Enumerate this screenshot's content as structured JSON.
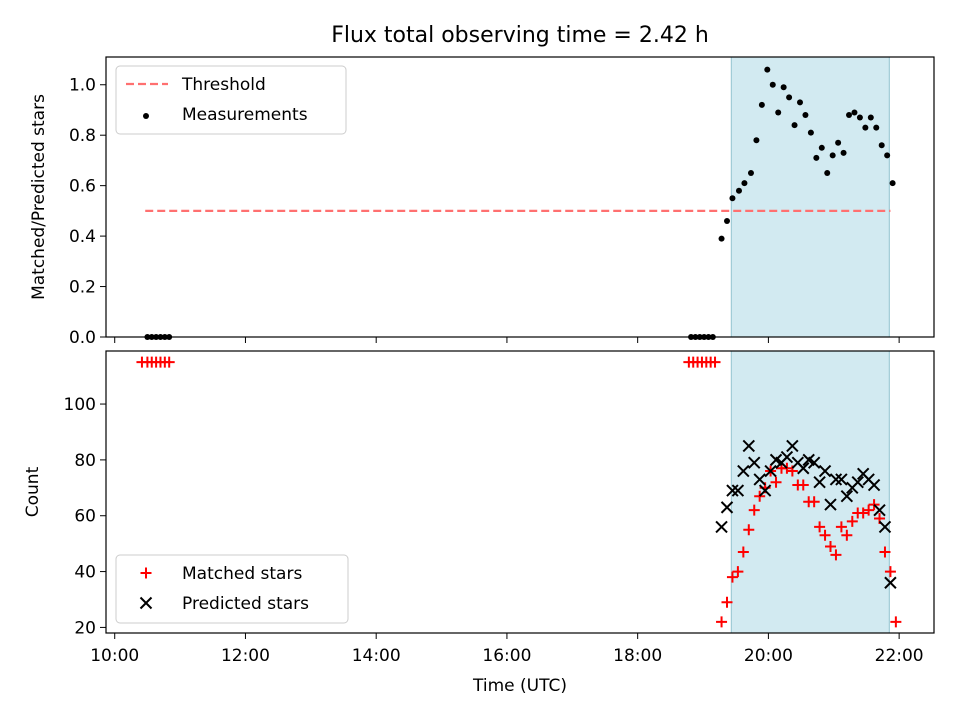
{
  "title": "Flux total observing time = 2.42 h",
  "chart_data": [
    {
      "type": "scatter",
      "ylabel": "Matched/Predicted stars",
      "ylim": [
        0,
        1.11
      ],
      "xlim": [
        "09:52",
        "22:32"
      ],
      "xticks": [],
      "yticks": [
        "0.0",
        "0.2",
        "0.4",
        "0.6",
        "0.8",
        "1.0"
      ],
      "shaded_interval": [
        "19:26",
        "21:51"
      ],
      "shade_color": "#add8e6",
      "legend_position": "upper left",
      "legend": [
        {
          "label": "Threshold",
          "marker": "dashed-line",
          "color": "#ff7070"
        },
        {
          "label": "Measurements",
          "marker": "dot",
          "color": "#000000"
        }
      ],
      "threshold": {
        "y": 0.5,
        "x_range": [
          "10:28",
          "21:52"
        ]
      },
      "measurements": [
        [
          "10:30",
          0
        ],
        [
          "10:34",
          0
        ],
        [
          "10:38",
          0
        ],
        [
          "10:42",
          0
        ],
        [
          "10:46",
          0
        ],
        [
          "10:50",
          0
        ],
        [
          "18:49",
          0
        ],
        [
          "18:53",
          0
        ],
        [
          "18:57",
          0
        ],
        [
          "19:01",
          0
        ],
        [
          "19:05",
          0
        ],
        [
          "19:09",
          0
        ],
        [
          "19:17",
          0.39
        ],
        [
          "19:22",
          0.46
        ],
        [
          "19:27",
          0.55
        ],
        [
          "19:33",
          0.58
        ],
        [
          "19:38",
          0.61
        ],
        [
          "19:44",
          0.65
        ],
        [
          "19:49",
          0.78
        ],
        [
          "19:54",
          0.92
        ],
        [
          "19:59",
          1.06
        ],
        [
          "20:04",
          1.0
        ],
        [
          "20:09",
          0.89
        ],
        [
          "20:14",
          0.99
        ],
        [
          "20:19",
          0.95
        ],
        [
          "20:24",
          0.84
        ],
        [
          "20:29",
          0.93
        ],
        [
          "20:34",
          0.88
        ],
        [
          "20:39",
          0.81
        ],
        [
          "20:44",
          0.71
        ],
        [
          "20:49",
          0.75
        ],
        [
          "20:54",
          0.65
        ],
        [
          "20:59",
          0.72
        ],
        [
          "21:04",
          0.77
        ],
        [
          "21:09",
          0.73
        ],
        [
          "21:14",
          0.88
        ],
        [
          "21:19",
          0.89
        ],
        [
          "21:24",
          0.87
        ],
        [
          "21:29",
          0.83
        ],
        [
          "21:34",
          0.87
        ],
        [
          "21:39",
          0.83
        ],
        [
          "21:44",
          0.76
        ],
        [
          "21:49",
          0.72
        ],
        [
          "21:54",
          0.61
        ]
      ]
    },
    {
      "type": "scatter",
      "ylabel": "Count",
      "xlabel": "Time (UTC)",
      "ylim": [
        18,
        119
      ],
      "xlim": [
        "09:52",
        "22:32"
      ],
      "xticks": [
        "10:00",
        "12:00",
        "14:00",
        "16:00",
        "18:00",
        "20:00",
        "22:00"
      ],
      "yticks": [
        "20",
        "40",
        "60",
        "80",
        "100"
      ],
      "shaded_interval": [
        "19:26",
        "21:51"
      ],
      "shade_color": "#add8e6",
      "legend_position": "lower left",
      "legend": [
        {
          "label": "Matched stars",
          "marker": "plus",
          "color": "#ff0000"
        },
        {
          "label": "Predicted stars",
          "marker": "x",
          "color": "#000000"
        }
      ],
      "series": [
        {
          "name": "Matched stars",
          "marker": "plus",
          "color": "#ff0000",
          "points": [
            [
              "10:25",
              115
            ],
            [
              "10:30",
              115
            ],
            [
              "10:34",
              115
            ],
            [
              "10:38",
              115
            ],
            [
              "10:42",
              115
            ],
            [
              "10:46",
              115
            ],
            [
              "10:50",
              115
            ],
            [
              "18:47",
              115
            ],
            [
              "18:51",
              115
            ],
            [
              "18:55",
              115
            ],
            [
              "18:59",
              115
            ],
            [
              "19:03",
              115
            ],
            [
              "19:07",
              115
            ],
            [
              "19:11",
              115
            ],
            [
              "19:17",
              22
            ],
            [
              "19:22",
              29
            ],
            [
              "19:27",
              38
            ],
            [
              "19:32",
              40
            ],
            [
              "19:37",
              47
            ],
            [
              "19:42",
              55
            ],
            [
              "19:47",
              62
            ],
            [
              "19:52",
              67
            ],
            [
              "19:57",
              70
            ],
            [
              "20:02",
              76
            ],
            [
              "20:07",
              72
            ],
            [
              "20:12",
              77
            ],
            [
              "20:17",
              77
            ],
            [
              "20:22",
              76
            ],
            [
              "20:27",
              71
            ],
            [
              "20:32",
              71
            ],
            [
              "20:37",
              65
            ],
            [
              "20:42",
              65
            ],
            [
              "20:47",
              56
            ],
            [
              "20:52",
              53
            ],
            [
              "20:57",
              49
            ],
            [
              "21:02",
              46
            ],
            [
              "21:07",
              56
            ],
            [
              "21:12",
              53
            ],
            [
              "21:17",
              58
            ],
            [
              "21:22",
              61
            ],
            [
              "21:27",
              61
            ],
            [
              "21:32",
              62
            ],
            [
              "21:37",
              64
            ],
            [
              "21:42",
              59
            ],
            [
              "21:47",
              47
            ],
            [
              "21:52",
              40
            ],
            [
              "21:57",
              22
            ]
          ]
        },
        {
          "name": "Predicted stars",
          "marker": "x",
          "color": "#000000",
          "points": [
            [
              "19:17",
              56
            ],
            [
              "19:22",
              63
            ],
            [
              "19:27",
              69
            ],
            [
              "19:32",
              69
            ],
            [
              "19:37",
              76
            ],
            [
              "19:42",
              85
            ],
            [
              "19:47",
              79
            ],
            [
              "19:52",
              73
            ],
            [
              "19:57",
              69
            ],
            [
              "20:02",
              76
            ],
            [
              "20:07",
              80
            ],
            [
              "20:12",
              79
            ],
            [
              "20:17",
              81
            ],
            [
              "20:22",
              85
            ],
            [
              "20:27",
              79
            ],
            [
              "20:32",
              77
            ],
            [
              "20:37",
              80
            ],
            [
              "20:42",
              79
            ],
            [
              "20:47",
              72
            ],
            [
              "20:52",
              76
            ],
            [
              "20:57",
              64
            ],
            [
              "21:02",
              73
            ],
            [
              "21:07",
              73
            ],
            [
              "21:12",
              67
            ],
            [
              "21:17",
              70
            ],
            [
              "21:22",
              72
            ],
            [
              "21:27",
              75
            ],
            [
              "21:32",
              73
            ],
            [
              "21:37",
              71
            ],
            [
              "21:42",
              62
            ],
            [
              "21:47",
              56
            ],
            [
              "21:52",
              36
            ]
          ]
        }
      ]
    }
  ]
}
